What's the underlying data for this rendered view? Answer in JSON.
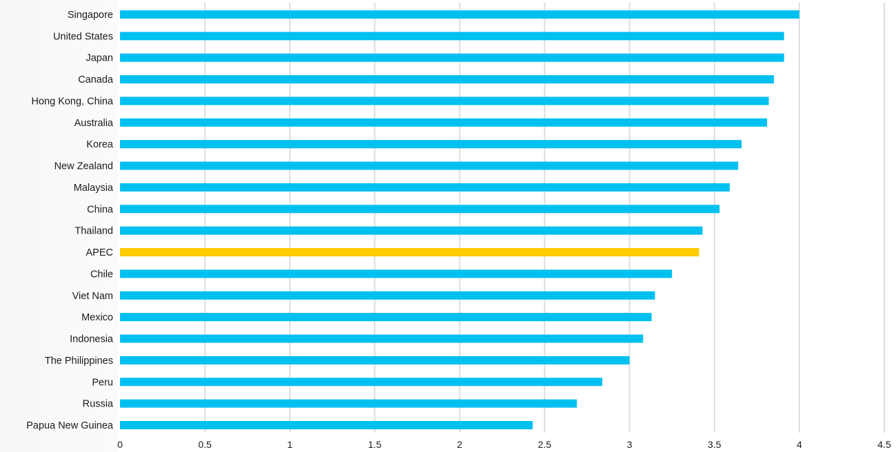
{
  "chart_data": {
    "type": "bar",
    "orientation": "horizontal",
    "title": "",
    "xlabel": "",
    "ylabel": "",
    "xlim": [
      0,
      4.5
    ],
    "x_ticks": [
      "0",
      "0.5",
      "1",
      "1.5",
      "2",
      "2.5",
      "3",
      "3.5",
      "4",
      "4.5"
    ],
    "grid": "vertical",
    "categories": [
      "Singapore",
      "United States",
      "Japan",
      "Canada",
      "Hong Kong, China",
      "Australia",
      "Korea",
      "New Zealand",
      "Malaysia",
      "China",
      "Thailand",
      "APEC",
      "Chile",
      "Viet Nam",
      "Mexico",
      "Indonesia",
      "The Philippines",
      "Peru",
      "Russia",
      "Papua New Guinea"
    ],
    "values": [
      4.0,
      3.91,
      3.91,
      3.85,
      3.82,
      3.81,
      3.66,
      3.64,
      3.59,
      3.53,
      3.43,
      3.41,
      3.25,
      3.15,
      3.13,
      3.08,
      3.0,
      2.84,
      2.69,
      2.43
    ],
    "highlight_category": "APEC",
    "colors": {
      "bar": "#00c0f0",
      "highlight": "#ffcc00",
      "grid": "#dddddd",
      "text": "#1a1a1a"
    }
  }
}
